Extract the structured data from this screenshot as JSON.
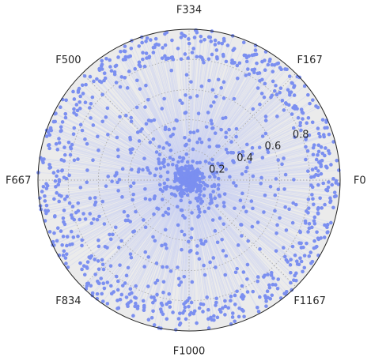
{
  "chart_data": {
    "type": "polar-scatter",
    "title": "",
    "angular_tick_labels": [
      "F0",
      "F167",
      "F334",
      "F500",
      "F667",
      "F834",
      "F1000",
      "F1167"
    ],
    "angular_tick_degrees": [
      0,
      45,
      90,
      135,
      180,
      225,
      270,
      315
    ],
    "radial_tick_labels": [
      "0.2",
      "0.4",
      "0.6",
      "0.8"
    ],
    "radial_ticks": [
      0.2,
      0.4,
      0.6,
      0.8
    ],
    "rlim": [
      0,
      1
    ],
    "grid": true,
    "point_count": 1333,
    "marker_color": "#7b8ff0",
    "stem_color": "#c9cff2",
    "background_color": "#ebebeb",
    "grid_color": "#aaaaaa"
  }
}
